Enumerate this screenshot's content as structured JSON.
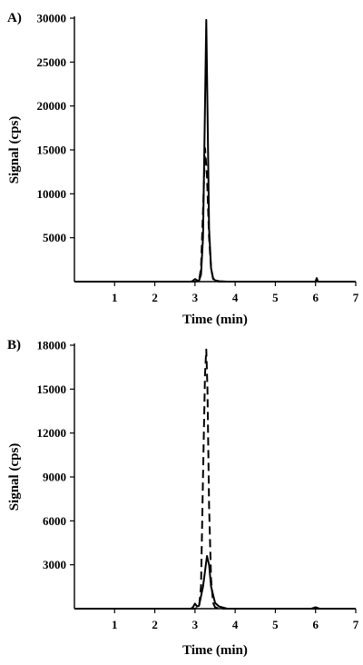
{
  "chart_data": [
    {
      "type": "line",
      "panel_label": "A)",
      "xlabel": "Time (min)",
      "ylabel": "Signal (cps)",
      "xlim": [
        0,
        7
      ],
      "ylim": [
        0,
        30000
      ],
      "x_ticks": [
        1,
        2,
        3,
        4,
        5,
        6,
        7
      ],
      "y_ticks": [
        5000,
        10000,
        15000,
        20000,
        25000,
        30000
      ],
      "legend": "none",
      "grid": false,
      "series": [
        {
          "style": "solid",
          "x": [
            0,
            2.9,
            2.95,
            3.0,
            3.05,
            3.1,
            3.15,
            3.2,
            3.25,
            3.28,
            3.31,
            3.35,
            3.4,
            3.45,
            3.5,
            3.6,
            3.8,
            5.0,
            5.9,
            6.0,
            6.03,
            6.06,
            6.1,
            7.0
          ],
          "y": [
            0,
            0,
            100,
            300,
            150,
            100,
            800,
            5000,
            20000,
            29800,
            20000,
            6000,
            1500,
            400,
            150,
            50,
            0,
            0,
            0,
            0,
            400,
            0,
            0,
            0
          ]
        },
        {
          "style": "dashed",
          "x": [
            0,
            3.0,
            3.1,
            3.15,
            3.2,
            3.25,
            3.3,
            3.35,
            3.4,
            3.45,
            3.5,
            3.6,
            7.0
          ],
          "y": [
            0,
            0,
            100,
            1500,
            8000,
            15200,
            12000,
            5000,
            1500,
            300,
            100,
            0,
            0
          ]
        }
      ]
    },
    {
      "type": "line",
      "panel_label": "B)",
      "xlabel": "Time (min)",
      "ylabel": "Signal (cps)",
      "xlim": [
        0,
        7
      ],
      "ylim": [
        0,
        18000
      ],
      "x_ticks": [
        1,
        2,
        3,
        4,
        5,
        6,
        7
      ],
      "y_ticks": [
        3000,
        6000,
        9000,
        12000,
        15000,
        18000
      ],
      "legend": "none",
      "grid": false,
      "series": [
        {
          "style": "dashed",
          "x": [
            0,
            3.0,
            3.1,
            3.15,
            3.2,
            3.25,
            3.28,
            3.31,
            3.35,
            3.4,
            3.45,
            3.5,
            3.6,
            7.0
          ],
          "y": [
            0,
            0,
            100,
            1500,
            9000,
            16000,
            17700,
            15000,
            7000,
            2000,
            400,
            100,
            0,
            0
          ]
        },
        {
          "style": "solid",
          "x": [
            0,
            2.9,
            2.95,
            3.0,
            3.05,
            3.1,
            3.2,
            3.3,
            3.35,
            3.4,
            3.5,
            3.6,
            3.8,
            5.9,
            6.0,
            6.1,
            7.0
          ],
          "y": [
            0,
            0,
            100,
            350,
            150,
            200,
            1500,
            3600,
            3000,
            1500,
            400,
            150,
            0,
            0,
            100,
            0,
            0
          ]
        }
      ]
    }
  ]
}
